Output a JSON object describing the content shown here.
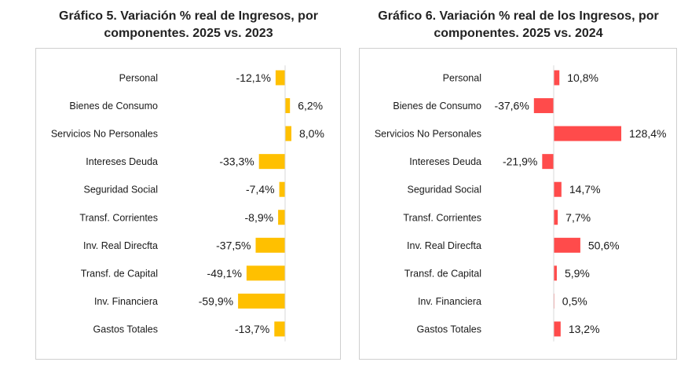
{
  "chart_data": [
    {
      "type": "bar",
      "orientation": "horizontal",
      "title_line1": "Gráfico 5. Variación % real de Ingresos, por",
      "title_line2": "componentes. 2025 vs. 2023",
      "categories": [
        "Personal",
        "Bienes de Consumo",
        "Servicios No Personales",
        "Intereses Deuda",
        "Seguridad Social",
        "Transf. Corrientes",
        "Inv. Real Direcfta",
        "Transf. de Capital",
        "Inv. Financiera",
        "Gastos Totales"
      ],
      "values": [
        -12.1,
        6.2,
        8.0,
        -33.3,
        -7.4,
        -8.9,
        -37.5,
        -49.1,
        -59.9,
        -13.7
      ],
      "labels": [
        "-12,1%",
        "6,2%",
        "8,0%",
        "-33,3%",
        "-7,4%",
        "-8,9%",
        "-37,5%",
        "-49,1%",
        "-59,9%",
        "-13,7%"
      ],
      "color": "#FFC000",
      "grid": false,
      "legend": "none"
    },
    {
      "type": "bar",
      "orientation": "horizontal",
      "title_line1": "Gráfico 6. Variación % real de los Ingresos, por",
      "title_line2": "componentes. 2025 vs. 2024",
      "categories": [
        "Personal",
        "Bienes de Consumo",
        "Servicios No Personales",
        "Intereses Deuda",
        "Seguridad Social",
        "Transf. Corrientes",
        "Inv. Real Direcfta",
        "Transf. de Capital",
        "Inv. Financiera",
        "Gastos Totales"
      ],
      "values": [
        10.8,
        -37.6,
        128.4,
        -21.9,
        14.7,
        7.7,
        50.6,
        5.9,
        0.5,
        13.2
      ],
      "labels": [
        "10,8%",
        "-37,6%",
        "128,4%",
        "-21,9%",
        "14,7%",
        "7,7%",
        "50,6%",
        "5,9%",
        "0,5%",
        "13,2%"
      ],
      "color": "#FF4B4B",
      "grid": false,
      "legend": "none"
    }
  ]
}
